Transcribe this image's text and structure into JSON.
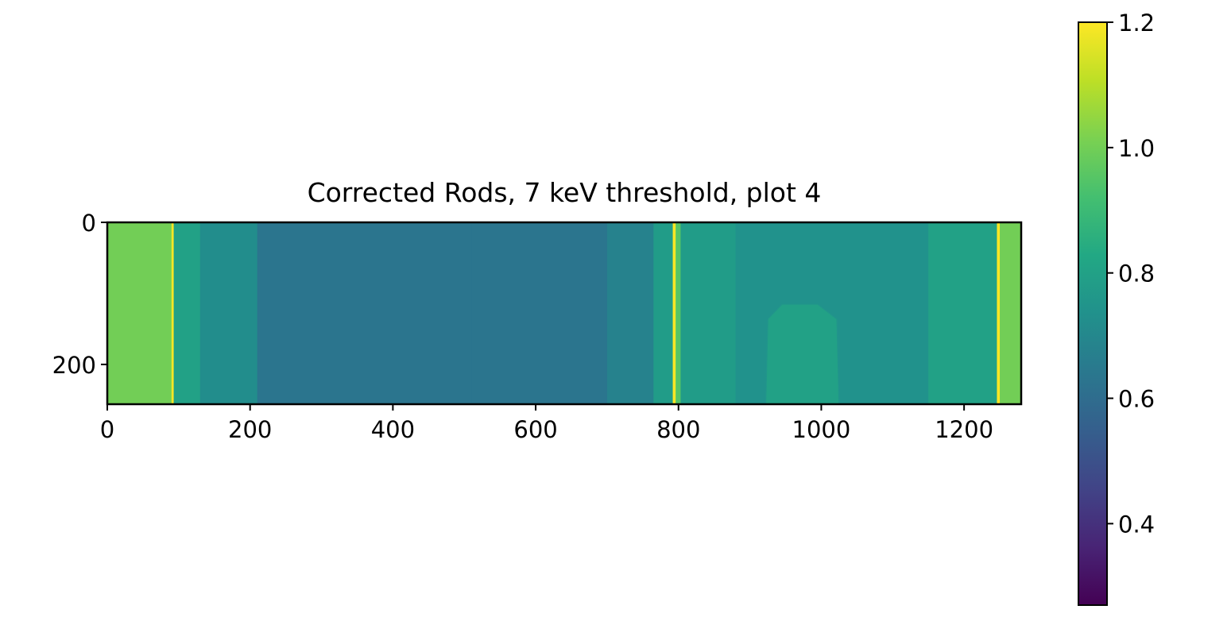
{
  "chart_data": {
    "type": "heatmap",
    "title": "Corrected Rods, 7 keV threshold, plot 4",
    "xlabel": "",
    "ylabel": "",
    "x_range": [
      0,
      1280
    ],
    "y_range": [
      0,
      256
    ],
    "y_inverted": true,
    "x_ticks": [
      0,
      200,
      400,
      600,
      800,
      1000,
      1200
    ],
    "y_ticks": [
      0,
      200
    ],
    "colormap": "viridis",
    "colorbar": {
      "range": [
        0.27,
        1.2
      ],
      "ticks": [
        "0.4",
        "0.6",
        "0.8",
        "1.0",
        "1.2"
      ]
    },
    "bands": [
      {
        "x0": 0,
        "x1": 90,
        "value": 1.0
      },
      {
        "x0": 90,
        "x1": 93,
        "value": 1.2
      },
      {
        "x0": 93,
        "x1": 130,
        "value": 0.8
      },
      {
        "x0": 130,
        "x1": 210,
        "value": 0.72
      },
      {
        "x0": 210,
        "x1": 510,
        "value": 0.63
      },
      {
        "x0": 510,
        "x1": 700,
        "value": 0.63
      },
      {
        "x0": 700,
        "x1": 765,
        "value": 0.68
      },
      {
        "x0": 765,
        "x1": 792,
        "value": 0.78
      },
      {
        "x0": 792,
        "x1": 796,
        "value": 1.2
      },
      {
        "x0": 796,
        "x1": 803,
        "value": 0.95
      },
      {
        "x0": 803,
        "x1": 880,
        "value": 0.78
      },
      {
        "x0": 880,
        "x1": 1150,
        "value": 0.74
      },
      {
        "x0": 1150,
        "x1": 1246,
        "value": 0.8
      },
      {
        "x0": 1246,
        "x1": 1250,
        "value": 1.2
      },
      {
        "x0": 1250,
        "x1": 1280,
        "value": 1.0
      }
    ],
    "insert_polygon": {
      "points": [
        [
          922,
          256
        ],
        [
          925,
          136
        ],
        [
          945,
          115
        ],
        [
          995,
          115
        ],
        [
          1022,
          136
        ],
        [
          1025,
          256
        ]
      ],
      "value": 0.8
    }
  }
}
